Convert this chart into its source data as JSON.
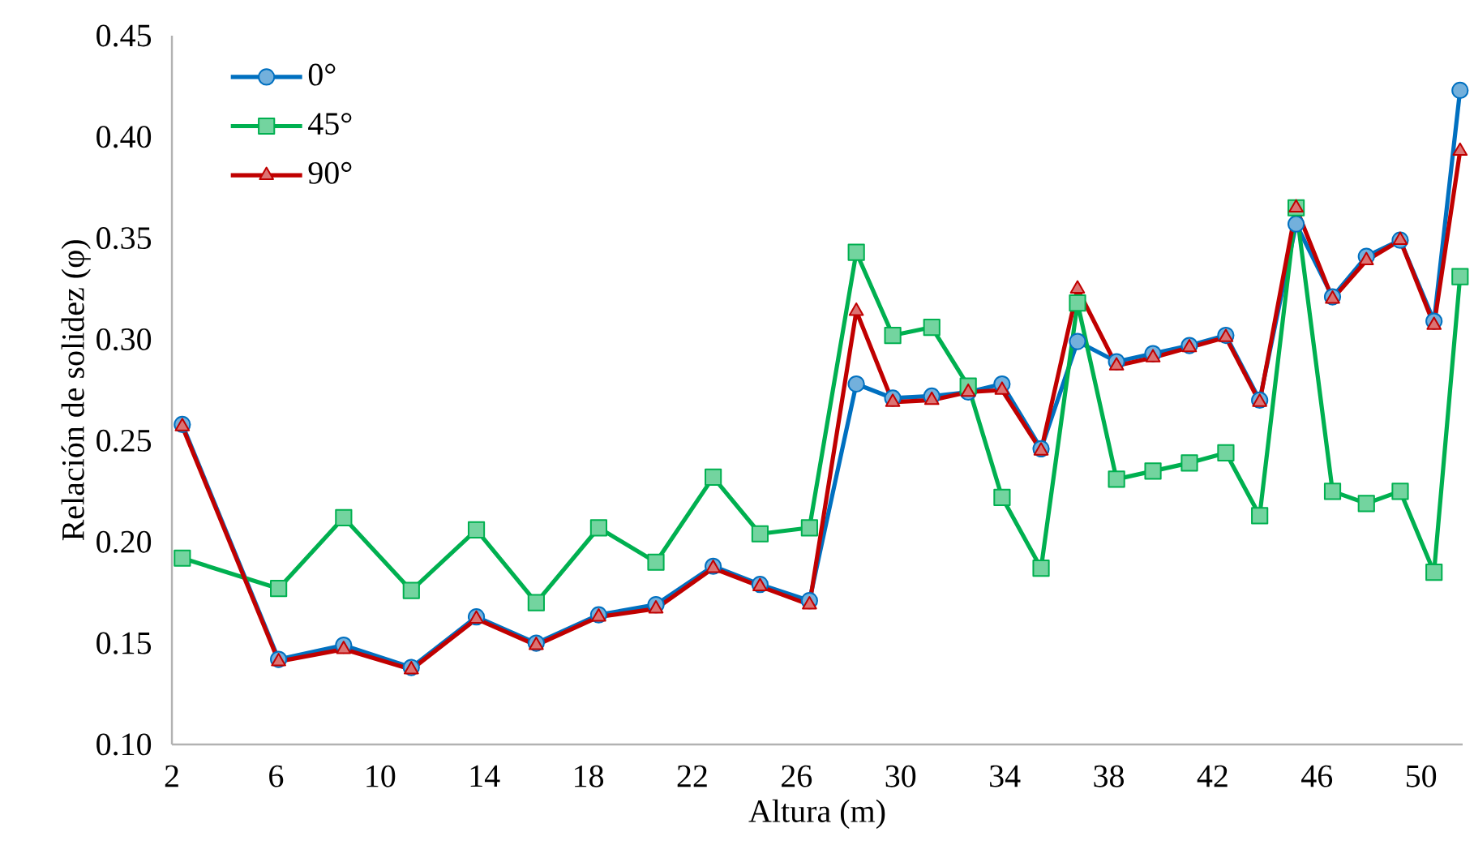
{
  "chart_data": {
    "type": "line",
    "xlabel": "Altura (m)",
    "ylabel": "Relación de solidez (φ)",
    "x": [
      2.4,
      6.1,
      8.6,
      11.2,
      13.7,
      16.0,
      18.4,
      20.6,
      22.8,
      24.6,
      26.5,
      28.3,
      29.7,
      31.2,
      32.6,
      33.9,
      35.4,
      36.8,
      38.3,
      39.7,
      41.1,
      42.5,
      43.8,
      45.2,
      46.6,
      47.9,
      49.2,
      50.5,
      51.5
    ],
    "series": [
      {
        "name": "0°",
        "color": "#0070c0",
        "marker": "circle",
        "values": [
          0.258,
          0.142,
          0.149,
          0.138,
          0.163,
          0.15,
          0.164,
          0.169,
          0.188,
          0.179,
          0.171,
          0.278,
          0.271,
          0.272,
          0.274,
          0.278,
          0.246,
          0.299,
          0.289,
          0.293,
          0.297,
          0.302,
          0.27,
          0.357,
          0.321,
          0.341,
          0.349,
          0.309,
          0.423
        ]
      },
      {
        "name": "45°",
        "color": "#00b050",
        "marker": "square",
        "values": [
          0.192,
          0.177,
          0.212,
          0.176,
          0.206,
          0.17,
          0.207,
          0.19,
          0.232,
          0.204,
          0.207,
          0.343,
          0.302,
          0.306,
          0.277,
          0.222,
          0.187,
          0.318,
          0.231,
          0.235,
          0.239,
          0.244,
          0.213,
          0.365,
          0.225,
          0.219,
          0.225,
          0.185,
          0.331
        ]
      },
      {
        "name": "90°",
        "color": "#c00000",
        "marker": "triangle",
        "values": [
          0.257,
          0.141,
          0.147,
          0.137,
          0.162,
          0.149,
          0.163,
          0.167,
          0.187,
          0.178,
          0.169,
          0.314,
          0.269,
          0.27,
          0.274,
          0.275,
          0.245,
          0.325,
          0.287,
          0.291,
          0.296,
          0.301,
          0.269,
          0.365,
          0.32,
          0.339,
          0.349,
          0.307,
          0.393
        ]
      }
    ],
    "xlim": [
      2,
      51.6
    ],
    "xticks": [
      2,
      6,
      10,
      14,
      18,
      22,
      26,
      30,
      34,
      38,
      42,
      46,
      50
    ],
    "ylim": [
      0.1,
      0.45
    ],
    "yticks": [
      {
        "value": 0.1,
        "label": "0.10"
      },
      {
        "value": 0.15,
        "label": "0.15"
      },
      {
        "value": 0.2,
        "label": "0.20"
      },
      {
        "value": 0.25,
        "label": "0.25"
      },
      {
        "value": 0.3,
        "label": "0.30"
      },
      {
        "value": 0.35,
        "label": "0.35"
      },
      {
        "value": 0.4,
        "label": "0.40"
      },
      {
        "value": 0.45,
        "label": "0.45"
      }
    ],
    "grid": false,
    "legend": "top left",
    "line_style": "solid"
  }
}
